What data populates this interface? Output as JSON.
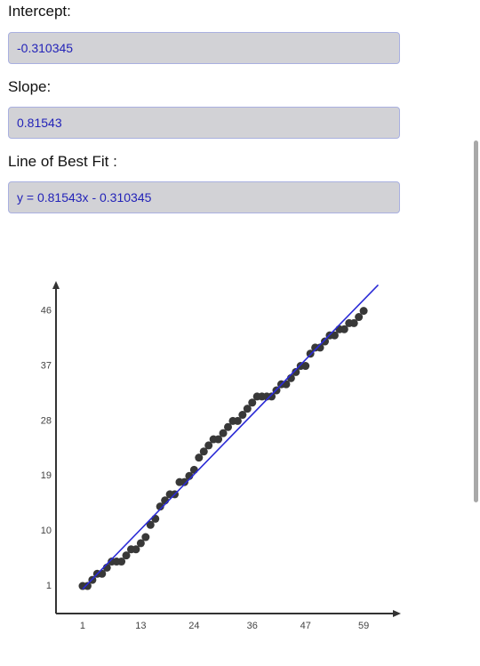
{
  "fields": [
    {
      "label": "Intercept:",
      "value": "-0.310345"
    },
    {
      "label": "Slope:",
      "value": "0.81543"
    },
    {
      "label": "Line of Best Fit :",
      "value": "y = 0.81543x - 0.310345"
    }
  ],
  "chart_data": {
    "type": "scatter",
    "xlim": [
      -4.5,
      66.5
    ],
    "ylim": [
      -3.5,
      50.6
    ],
    "xticks": [
      1,
      13,
      24,
      36,
      47,
      59
    ],
    "yticks": [
      1,
      10,
      19,
      28,
      37,
      46
    ],
    "grid": false,
    "series": [
      {
        "type": "scatter",
        "color": "#383838",
        "x": [
          1,
          2,
          3,
          4,
          5,
          6,
          7,
          8,
          9,
          10,
          11,
          12,
          13,
          14,
          15,
          16,
          17,
          18,
          19,
          20,
          21,
          22,
          23,
          24,
          25,
          26,
          27,
          28,
          29,
          30,
          31,
          32,
          33,
          34,
          35,
          36,
          37,
          38,
          39,
          40,
          41,
          42,
          43,
          44,
          45,
          46,
          47,
          48,
          49,
          50,
          51,
          52,
          53,
          54,
          55,
          56,
          57,
          58,
          59
        ],
        "values": [
          1,
          1,
          2,
          3,
          3,
          4,
          5,
          5,
          5,
          6,
          7,
          7,
          8,
          9,
          11,
          12,
          14,
          15,
          16,
          16,
          18,
          18,
          19,
          20,
          22,
          23,
          24,
          25,
          25,
          26,
          27,
          28,
          28,
          29,
          30,
          31,
          32,
          32,
          32,
          32,
          33,
          34,
          34,
          35,
          36,
          37,
          37,
          39,
          40,
          40,
          41,
          42,
          42,
          43,
          43,
          44,
          44,
          45,
          46
        ]
      },
      {
        "type": "line",
        "color": "#2b2bd6",
        "x": [
          1,
          62
        ],
        "values": [
          0.505,
          50.25
        ]
      }
    ]
  }
}
